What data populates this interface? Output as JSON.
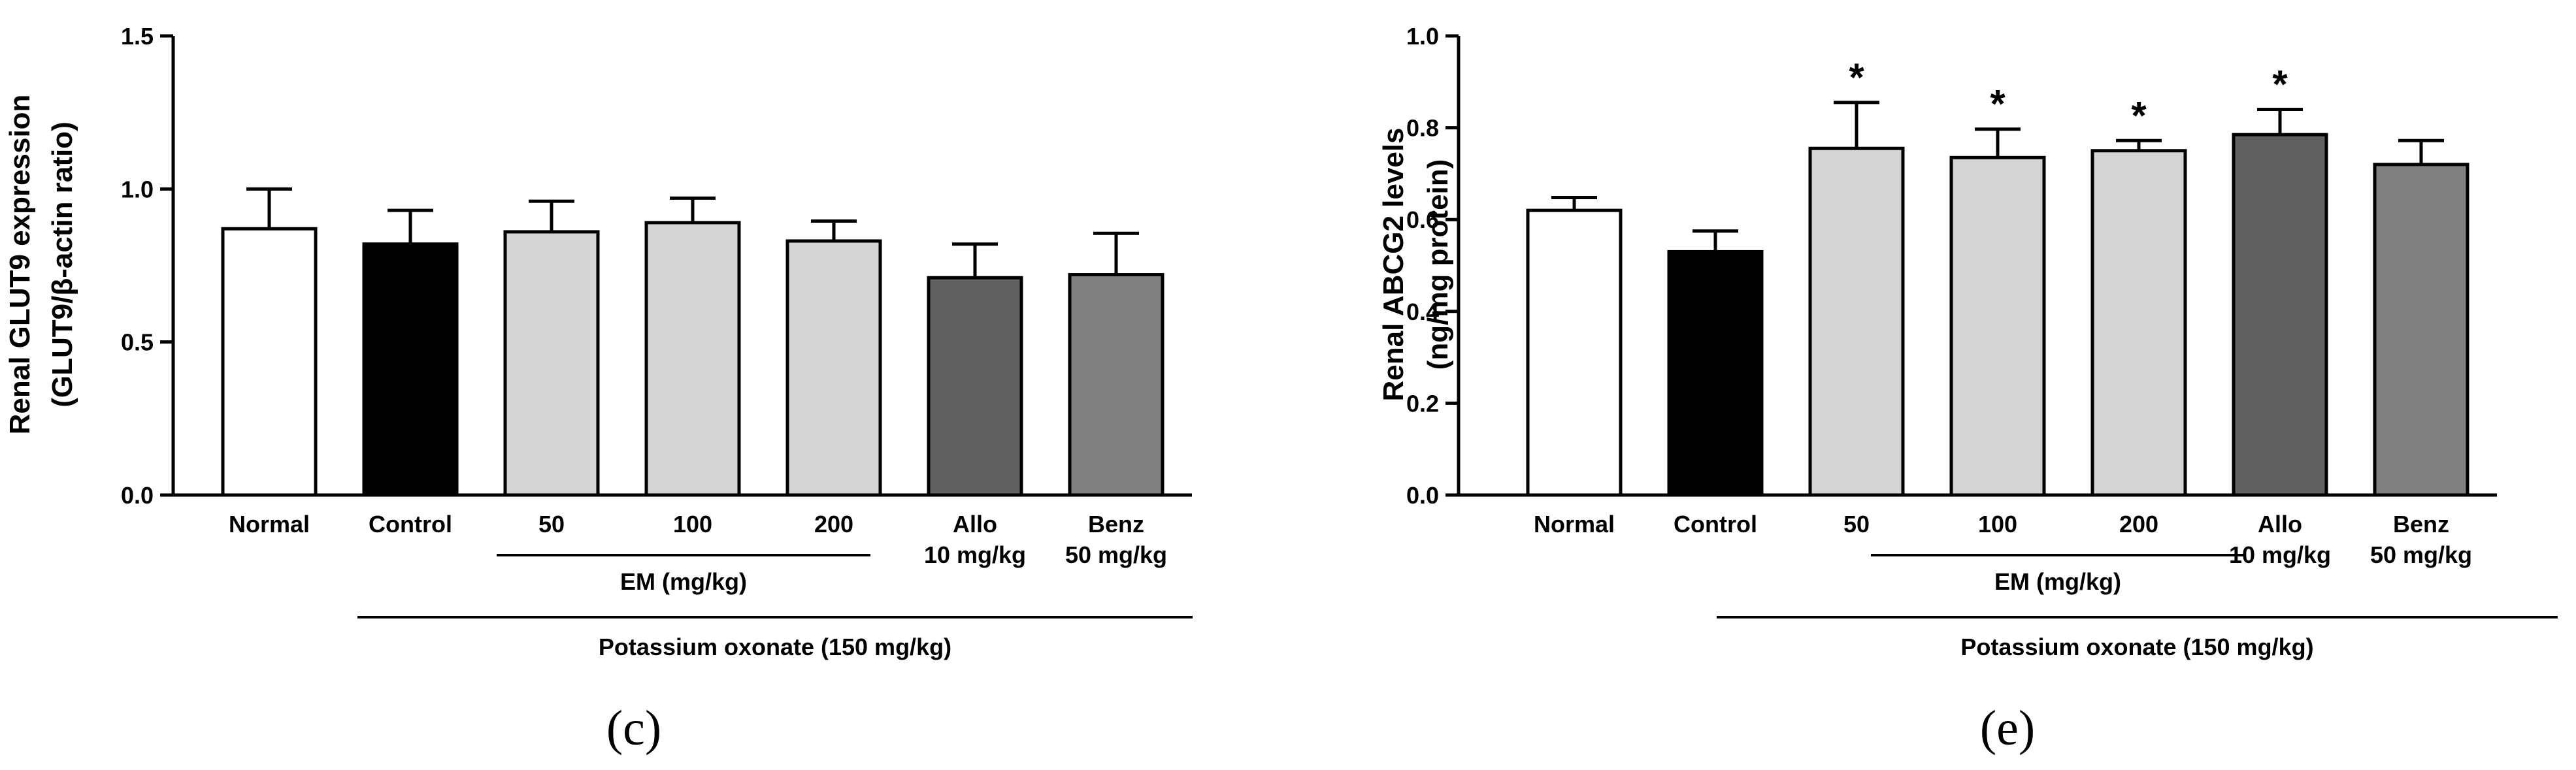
{
  "chart_data": [
    {
      "type": "bar",
      "panel_label": "(c)",
      "ylabel_lines": [
        "Renal GLUT9 expression",
        "(GLUT9/β-actin ratio)"
      ],
      "ylim": [
        0,
        1.5
      ],
      "yticks": [
        "0.0",
        "0.5",
        "1.0",
        "1.5"
      ],
      "categories": [
        {
          "lines": [
            "Normal"
          ],
          "value": 0.87,
          "error": 0.13,
          "color": "#ffffff",
          "sig": ""
        },
        {
          "lines": [
            "Control"
          ],
          "value": 0.82,
          "error": 0.11,
          "color": "#000000",
          "sig": ""
        },
        {
          "lines": [
            "50"
          ],
          "value": 0.86,
          "error": 0.1,
          "color": "#d4d4d4",
          "sig": ""
        },
        {
          "lines": [
            "100"
          ],
          "value": 0.89,
          "error": 0.08,
          "color": "#d4d4d4",
          "sig": ""
        },
        {
          "lines": [
            "200"
          ],
          "value": 0.83,
          "error": 0.065,
          "color": "#d4d4d4",
          "sig": ""
        },
        {
          "lines": [
            "Allo",
            "10 mg/kg"
          ],
          "value": 0.71,
          "error": 0.11,
          "color": "#606060",
          "sig": ""
        },
        {
          "lines": [
            "Benz",
            "50 mg/kg"
          ],
          "value": 0.72,
          "error": 0.135,
          "color": "#808080",
          "sig": ""
        }
      ],
      "group_em_label": "EM (mg/kg)",
      "group_po_label": "Potassium oxonate (150 mg/kg)"
    },
    {
      "type": "bar",
      "panel_label": "(e)",
      "ylabel_lines": [
        "Renal ABCG2 levels",
        "(ng/mg protein)"
      ],
      "ylim": [
        0,
        1.0
      ],
      "yticks": [
        "0.0",
        "0.2",
        "0.4",
        "0.6",
        "0.8",
        "1.0"
      ],
      "categories": [
        {
          "lines": [
            "Normal"
          ],
          "value": 0.62,
          "error": 0.028,
          "color": "#ffffff",
          "sig": ""
        },
        {
          "lines": [
            "Control"
          ],
          "value": 0.53,
          "error": 0.045,
          "color": "#000000",
          "sig": ""
        },
        {
          "lines": [
            "50"
          ],
          "value": 0.755,
          "error": 0.1,
          "color": "#d4d4d4",
          "sig": "*"
        },
        {
          "lines": [
            "100"
          ],
          "value": 0.735,
          "error": 0.062,
          "color": "#d4d4d4",
          "sig": "*"
        },
        {
          "lines": [
            "200"
          ],
          "value": 0.75,
          "error": 0.022,
          "color": "#d4d4d4",
          "sig": "*"
        },
        {
          "lines": [
            "Allo",
            "10 mg/kg"
          ],
          "value": 0.785,
          "error": 0.055,
          "color": "#606060",
          "sig": "*"
        },
        {
          "lines": [
            "Benz",
            "50 mg/kg"
          ],
          "value": 0.72,
          "error": 0.052,
          "color": "#808080",
          "sig": ""
        }
      ],
      "group_em_label": "EM (mg/kg)",
      "group_po_label": "Potassium oxonate (150 mg/kg)"
    }
  ]
}
